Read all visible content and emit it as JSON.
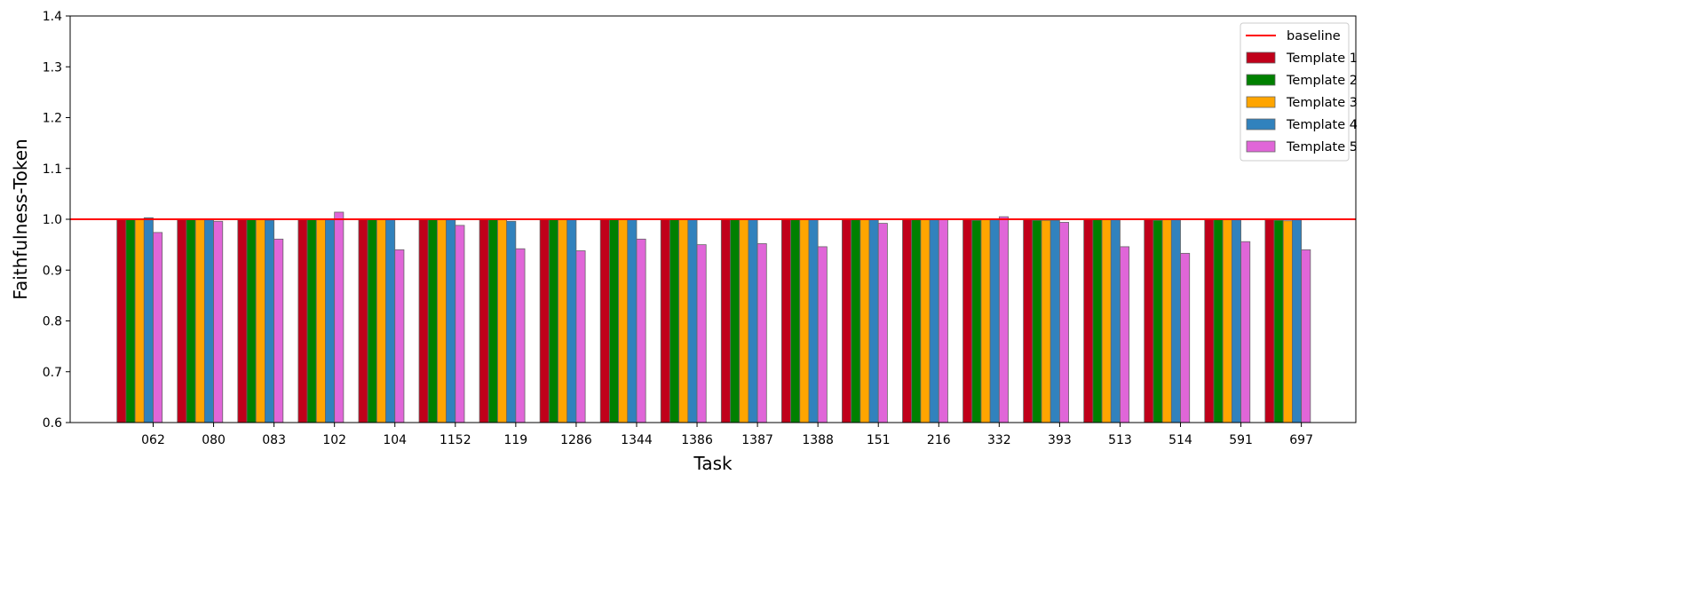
{
  "chart_data": {
    "type": "bar",
    "xlabel": "Task",
    "ylabel": "Faithfulness-Token",
    "ylim": [
      0.6,
      1.4
    ],
    "yticks": [
      "0.6",
      "0.7",
      "0.8",
      "0.9",
      "1.0",
      "1.1",
      "1.2",
      "1.3",
      "1.4"
    ],
    "categories": [
      "062",
      "080",
      "083",
      "102",
      "104",
      "1152",
      "119",
      "1286",
      "1344",
      "1386",
      "1387",
      "1388",
      "151",
      "216",
      "332",
      "393",
      "513",
      "514",
      "591",
      "697"
    ],
    "baseline": {
      "name": "baseline",
      "value": 1.0,
      "color": "#ff0000"
    },
    "legend_position": "top-right",
    "grid": false,
    "series": [
      {
        "name": "Template 1",
        "color": "#c0001a",
        "values": [
          1.0,
          1.0,
          1.0,
          1.0,
          1.0,
          1.0,
          1.0,
          1.0,
          1.0,
          1.0,
          1.0,
          1.0,
          1.0,
          1.0,
          1.0,
          1.0,
          1.0,
          1.0,
          1.0,
          1.0
        ]
      },
      {
        "name": "Template 2",
        "color": "#008000",
        "values": [
          1.0,
          1.0,
          1.0,
          1.0,
          1.0,
          1.0,
          1.0,
          1.0,
          1.0,
          1.0,
          1.0,
          1.0,
          1.0,
          1.0,
          0.998,
          0.998,
          1.0,
          0.998,
          1.0,
          0.998
        ]
      },
      {
        "name": "Template 3",
        "color": "#ffa500",
        "values": [
          1.0,
          1.0,
          1.0,
          1.0,
          1.0,
          1.0,
          1.0,
          1.0,
          1.0,
          1.0,
          1.0,
          1.0,
          1.0,
          1.0,
          1.0,
          0.998,
          1.0,
          1.0,
          1.0,
          0.997
        ]
      },
      {
        "name": "Template 4",
        "color": "#3182bd",
        "values": [
          1.003,
          1.0,
          0.998,
          1.0,
          1.0,
          1.0,
          0.996,
          1.0,
          1.0,
          1.0,
          1.0,
          1.0,
          1.0,
          1.0,
          1.0,
          0.998,
          1.0,
          1.0,
          1.0,
          1.0
        ]
      },
      {
        "name": "Template 5",
        "color": "#e066d8",
        "values": [
          0.974,
          0.996,
          0.961,
          1.014,
          0.94,
          0.988,
          0.942,
          0.938,
          0.961,
          0.95,
          0.952,
          0.946,
          0.992,
          1.0,
          1.005,
          0.994,
          0.946,
          0.933,
          0.956,
          0.94
        ]
      }
    ]
  }
}
